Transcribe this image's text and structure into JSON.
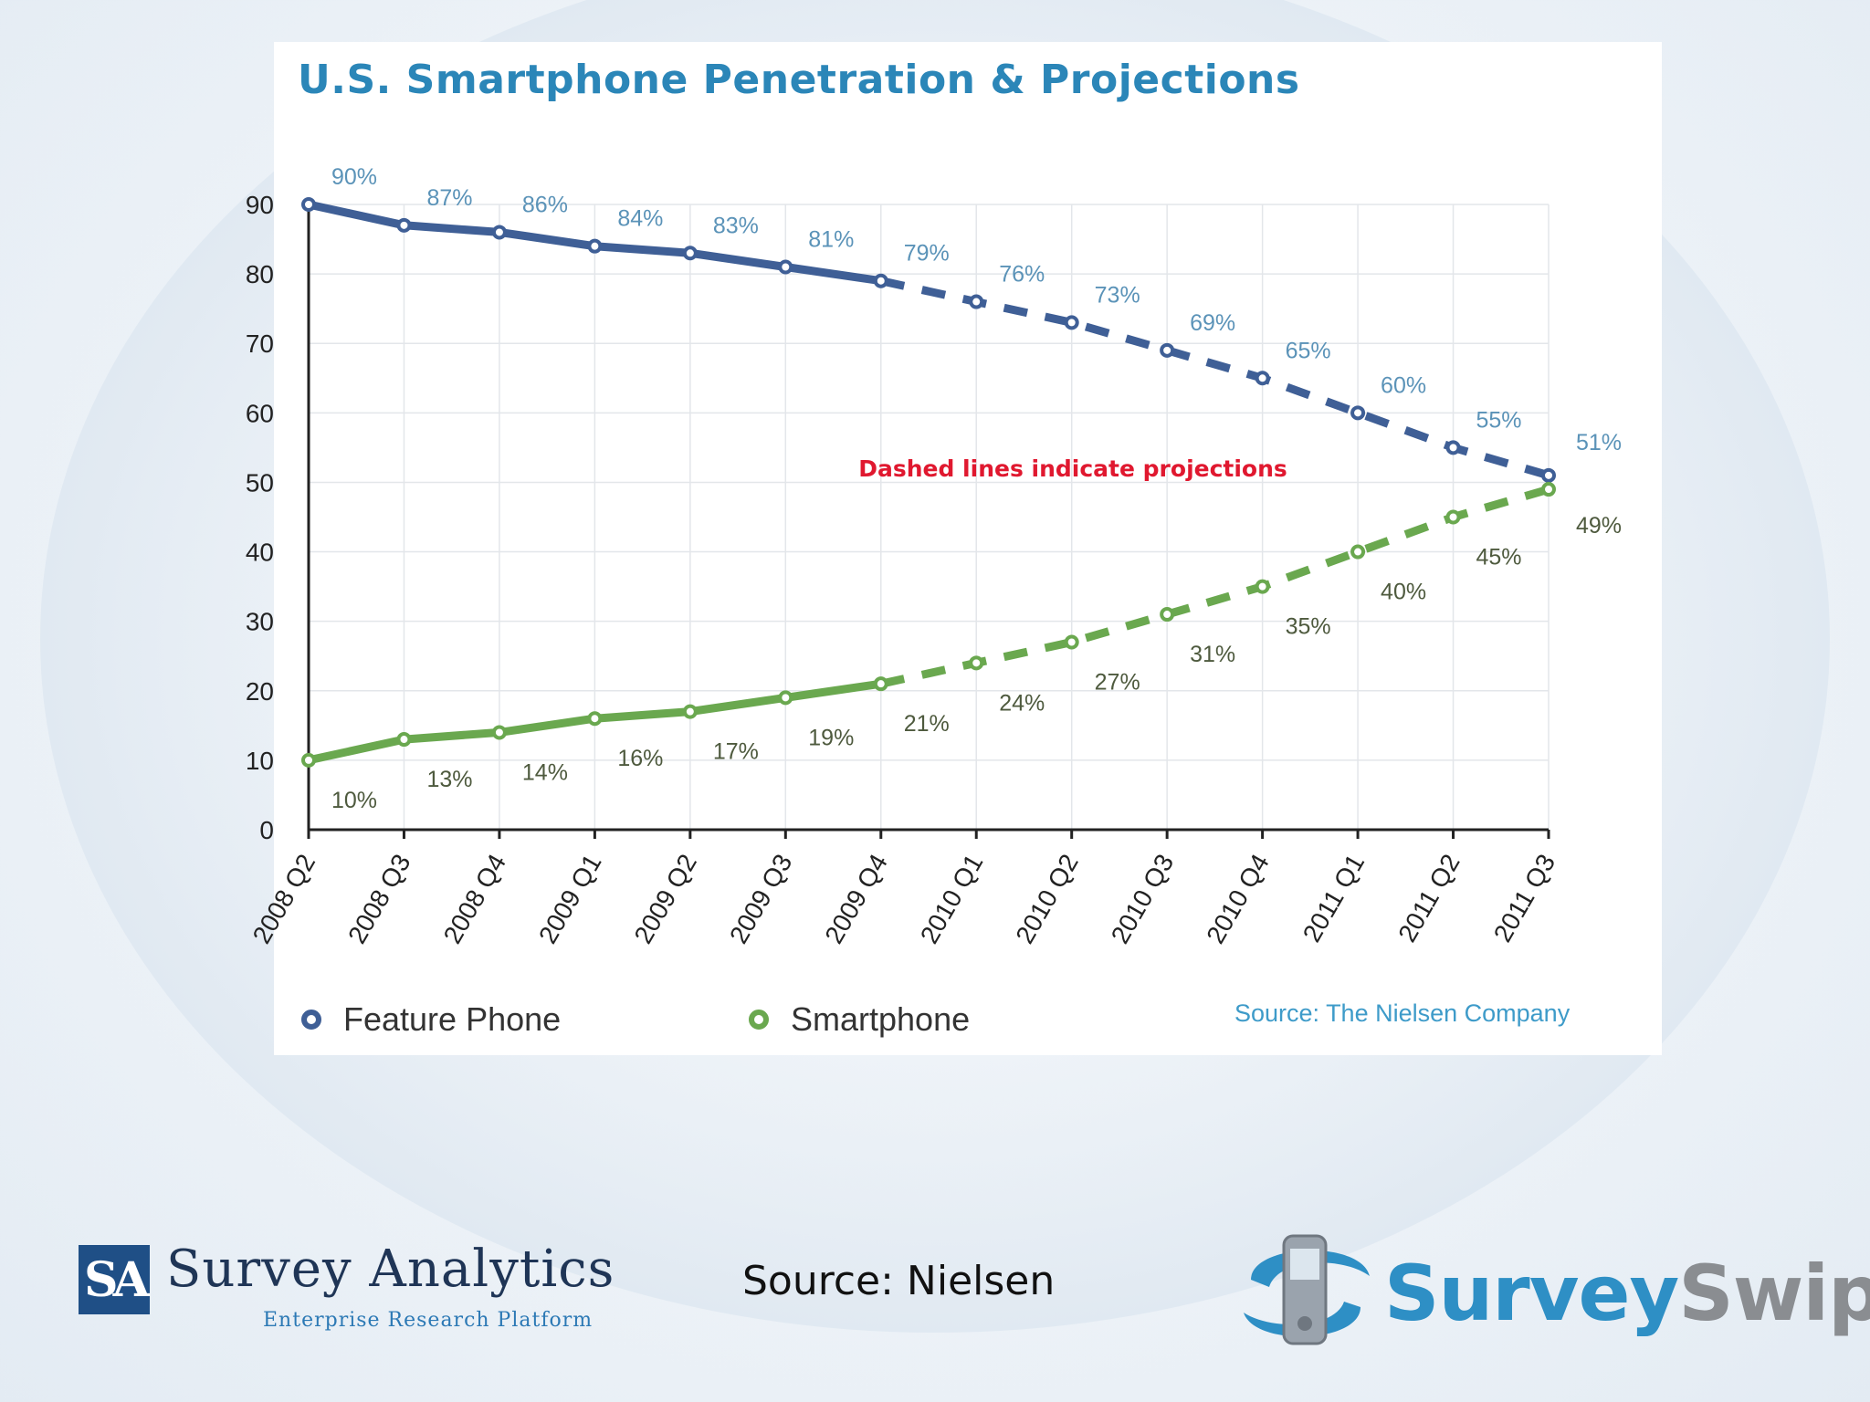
{
  "chart_data": {
    "type": "line",
    "title": "U.S. Smartphone Penetration & Projections",
    "categories": [
      "2008 Q2",
      "2008 Q3",
      "2008 Q4",
      "2009 Q1",
      "2009 Q2",
      "2009 Q3",
      "2009 Q4",
      "2010 Q1",
      "2010 Q2",
      "2010 Q3",
      "2010 Q4",
      "2011 Q1",
      "2011 Q2",
      "2011 Q3"
    ],
    "series": [
      {
        "name": "Feature Phone",
        "values": [
          90,
          87,
          86,
          84,
          83,
          81,
          79,
          76,
          73,
          69,
          65,
          60,
          55,
          51
        ],
        "labels": [
          "90%",
          "87%",
          "86%",
          "84%",
          "83%",
          "81%",
          "79%",
          "76%",
          "73%",
          "69%",
          "65%",
          "60%",
          "55%",
          "51%"
        ],
        "color": "#3f5f96",
        "label_color": "#5b93b8"
      },
      {
        "name": "Smartphone",
        "values": [
          10,
          13,
          14,
          16,
          17,
          19,
          21,
          24,
          27,
          31,
          35,
          40,
          45,
          49
        ],
        "labels": [
          "10%",
          "13%",
          "14%",
          "16%",
          "17%",
          "19%",
          "21%",
          "24%",
          "27%",
          "31%",
          "35%",
          "40%",
          "45%",
          "49%"
        ],
        "color": "#6aa84f",
        "label_color": "#4e5a3e"
      }
    ],
    "ylim": [
      0,
      90
    ],
    "yticks": [
      "0",
      "10",
      "20",
      "30",
      "40",
      "50",
      "60",
      "70",
      "80",
      "90"
    ],
    "xlabel": "",
    "ylabel": "",
    "grid": true,
    "projection_start": "2009 Q4",
    "annotation": "Dashed lines indicate projections",
    "annotation_color": "#e0182f",
    "legend": "bottom-left",
    "source": "Source: The Nielsen Company"
  },
  "slide": {
    "source_text": "Source: Nielsen"
  },
  "logos": {
    "left": {
      "mark": "SA",
      "name": "Survey Analytics",
      "tagline": "Enterprise Research Platform"
    },
    "right": {
      "name_part1": "Survey",
      "name_part2": "Swipe",
      "icon": "phone-swirl-icon"
    }
  }
}
